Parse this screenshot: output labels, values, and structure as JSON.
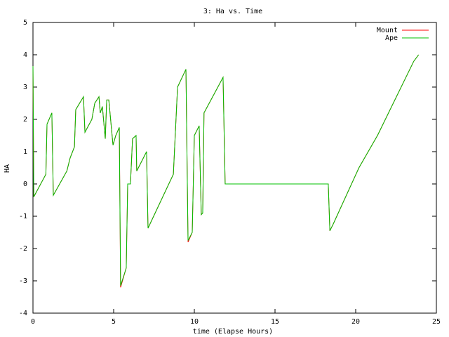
{
  "chart_data": {
    "type": "line",
    "title": "3: Ha vs. Time",
    "x_label": "time (Elapse Hours)",
    "y_label": "HA",
    "x": [
      0,
      0.05,
      0.8,
      0.87,
      1.17,
      1.26,
      2.1,
      2.3,
      2.57,
      2.65,
      3.13,
      3.22,
      3.65,
      3.83,
      4.09,
      4.17,
      4.3,
      4.48,
      4.57,
      4.7,
      4.96,
      5.13,
      5.35,
      5.43,
      5.78,
      5.87,
      6.04,
      6.17,
      6.39,
      6.43,
      7.04,
      7.13,
      8.7,
      8.96,
      9.48,
      9.61,
      9.87,
      10.0,
      10.3,
      10.43,
      10.52,
      10.6,
      11.78,
      11.91,
      18.3,
      18.4,
      18.6,
      20.2,
      21.35,
      23.6,
      23.9
    ],
    "series": [
      {
        "name": "Mount",
        "color": "#ff0000",
        "values": [
          3.65,
          -0.4,
          0.3,
          1.85,
          2.2,
          -0.35,
          0.4,
          0.8,
          1.15,
          2.3,
          2.7,
          1.6,
          2.0,
          2.5,
          2.7,
          2.2,
          2.4,
          1.4,
          2.6,
          2.6,
          1.2,
          1.5,
          1.75,
          -3.2,
          -2.6,
          0,
          0,
          1.4,
          1.5,
          0.4,
          1.0,
          -1.37,
          0.3,
          3.0,
          3.55,
          -1.8,
          -1.5,
          1.5,
          1.8,
          -0.95,
          -0.9,
          2.2,
          3.3,
          0,
          0,
          -1.45,
          -1.25,
          0.5,
          1.5,
          3.8,
          4.0
        ]
      },
      {
        "name": "Ape",
        "color": "#00c000",
        "values": [
          3.65,
          -0.4,
          0.3,
          1.85,
          2.2,
          -0.35,
          0.4,
          0.8,
          1.15,
          2.3,
          2.7,
          1.6,
          2.0,
          2.5,
          2.7,
          2.2,
          2.4,
          1.4,
          2.6,
          2.6,
          1.2,
          1.5,
          1.75,
          -3.15,
          -2.6,
          0,
          0,
          1.4,
          1.5,
          0.4,
          1.0,
          -1.37,
          0.3,
          3.0,
          3.55,
          -1.75,
          -1.5,
          1.5,
          1.8,
          -0.95,
          -0.9,
          2.2,
          3.3,
          0,
          0,
          -1.45,
          -1.25,
          0.5,
          1.5,
          3.8,
          4.0
        ]
      }
    ],
    "xlim": [
      0,
      25
    ],
    "xticks": [
      0,
      5,
      10,
      15,
      20,
      25
    ],
    "ylim": [
      -4,
      5
    ],
    "yticks": [
      -4,
      -3,
      -2,
      -1,
      0,
      1,
      2,
      3,
      4,
      5
    ],
    "grid": false,
    "legend": "top-right"
  }
}
